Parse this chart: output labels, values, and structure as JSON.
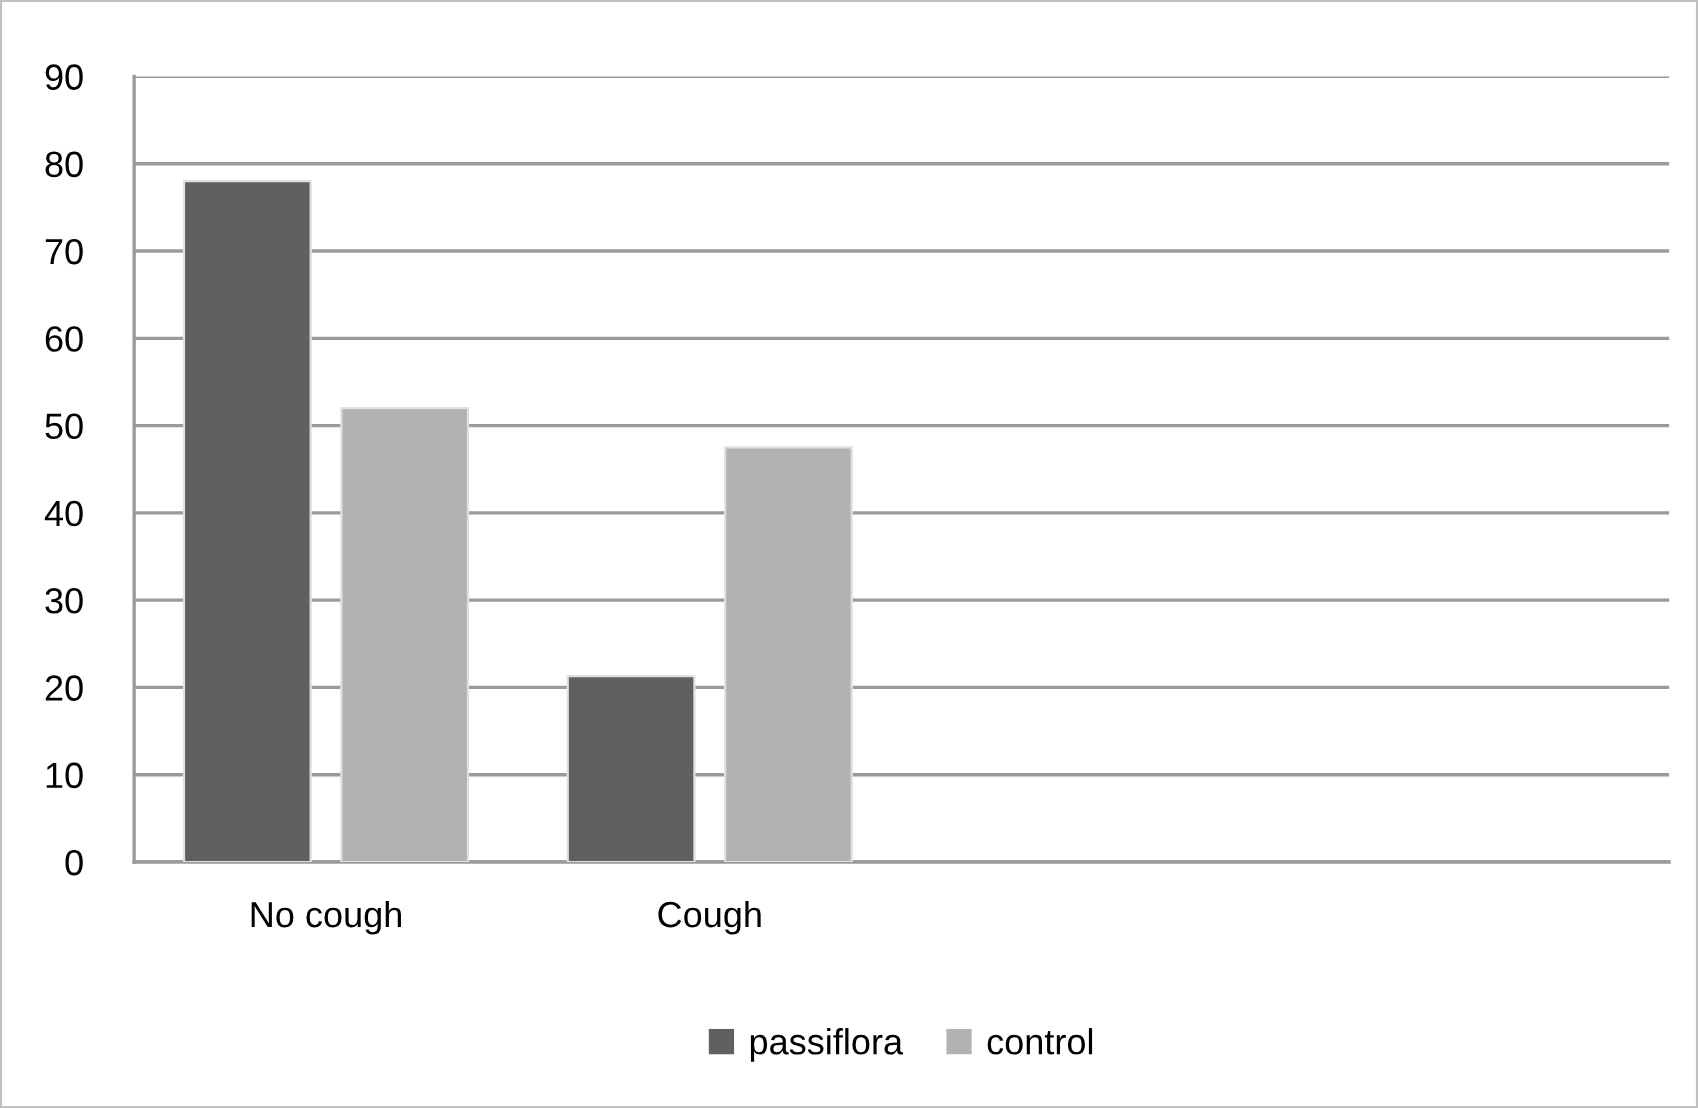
{
  "chart_data": {
    "type": "bar",
    "categories": [
      "No cough",
      "Cough",
      null,
      null
    ],
    "series": [
      {
        "name": "passiflora",
        "color": "#606060",
        "values": [
          78,
          21.3,
          null,
          null
        ]
      },
      {
        "name": "control",
        "color": "#b2b2b2",
        "values": [
          52,
          47.5,
          null,
          null
        ]
      }
    ],
    "ylim": [
      0,
      90
    ],
    "yticks": [
      0,
      10,
      20,
      30,
      40,
      50,
      60,
      70,
      80,
      90
    ],
    "grid": "y",
    "legend": "bottom"
  }
}
